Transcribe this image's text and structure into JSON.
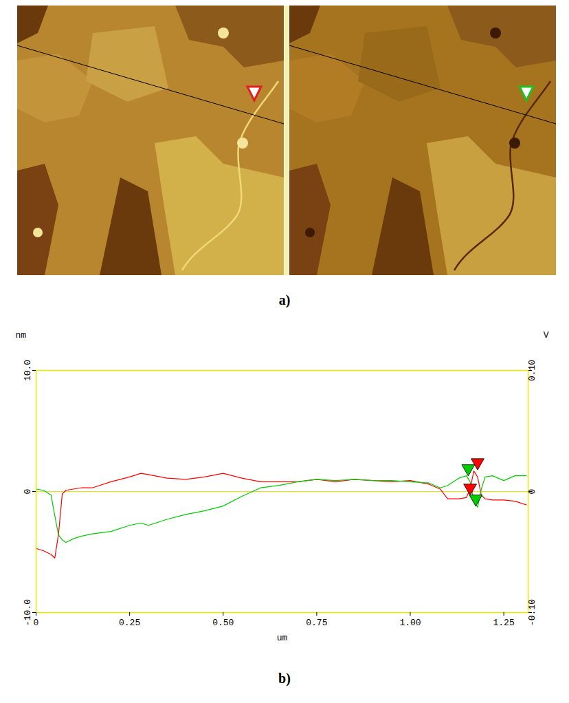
{
  "panel_labels": [
    "a)",
    "b)"
  ],
  "chart_data": {
    "type": "line",
    "x_label": "um",
    "y_label": "nm",
    "y2_label": "V",
    "x": [
      0,
      0.02,
      0.04,
      0.05,
      0.06,
      0.07,
      0.08,
      0.1,
      0.12,
      0.15,
      0.2,
      0.25,
      0.28,
      0.3,
      0.35,
      0.4,
      0.45,
      0.5,
      0.55,
      0.6,
      0.65,
      0.7,
      0.75,
      0.8,
      0.85,
      0.9,
      0.95,
      1.0,
      1.05,
      1.08,
      1.1,
      1.13,
      1.15,
      1.16,
      1.17,
      1.18,
      1.19,
      1.2,
      1.22,
      1.25,
      1.28,
      1.31
    ],
    "series": [
      {
        "color": "#ff0000",
        "values": [
          -4.7,
          -4.9,
          -5.2,
          -5.5,
          -3.5,
          -0.2,
          0.1,
          0.2,
          0.3,
          0.3,
          0.8,
          1.2,
          1.5,
          1.4,
          1.1,
          1.0,
          1.2,
          1.5,
          1.1,
          0.8,
          0.8,
          0.8,
          1.0,
          0.8,
          1.0,
          0.9,
          0.8,
          0.9,
          0.6,
          0.2,
          -0.6,
          -0.6,
          -0.5,
          0.2,
          1.7,
          1.2,
          -0.3,
          -0.6,
          -0.7,
          -0.7,
          -0.8,
          -1.1
        ]
      },
      {
        "color": "#00cc00",
        "values": [
          0.2,
          0.1,
          -0.3,
          -2.0,
          -3.6,
          -4.0,
          -4.2,
          -3.9,
          -3.7,
          -3.5,
          -3.3,
          -2.8,
          -2.6,
          -2.8,
          -2.3,
          -1.9,
          -1.6,
          -1.2,
          -0.4,
          0.3,
          0.5,
          0.8,
          1.0,
          0.9,
          1.0,
          0.9,
          0.9,
          0.8,
          0.7,
          0.3,
          0.5,
          1.1,
          1.3,
          0.8,
          -0.8,
          -1.3,
          0.2,
          1.2,
          1.3,
          0.9,
          1.3,
          1.3
        ]
      }
    ],
    "markers": [
      {
        "x": 1.18,
        "y": 2.4,
        "color": "#ff0000"
      },
      {
        "x": 1.16,
        "y": 0.3,
        "color": "#ff0000"
      },
      {
        "x": 1.155,
        "y": 1.9,
        "color": "#00cc00"
      },
      {
        "x": 1.175,
        "y": -0.6,
        "color": "#00cc00"
      }
    ],
    "hline": 0,
    "xlim": [
      0,
      1.315
    ],
    "xticks": [
      0,
      0.25,
      {
        "value": 0.5,
        "label": "0.50"
      },
      0.75,
      {
        "value": 1,
        "label": "1.00"
      },
      1.25
    ],
    "ylim": [
      -10,
      10
    ],
    "yticks": [
      {
        "value": -10,
        "label": "-10.0"
      },
      0,
      {
        "value": 10,
        "label": "10.0"
      }
    ],
    "y2lim": [
      -0.1,
      0.1
    ],
    "y2ticks": [
      {
        "value": -0.1,
        "label": "-0.10"
      },
      0,
      {
        "value": 0.1,
        "label": "0.10"
      }
    ],
    "grid": false
  }
}
